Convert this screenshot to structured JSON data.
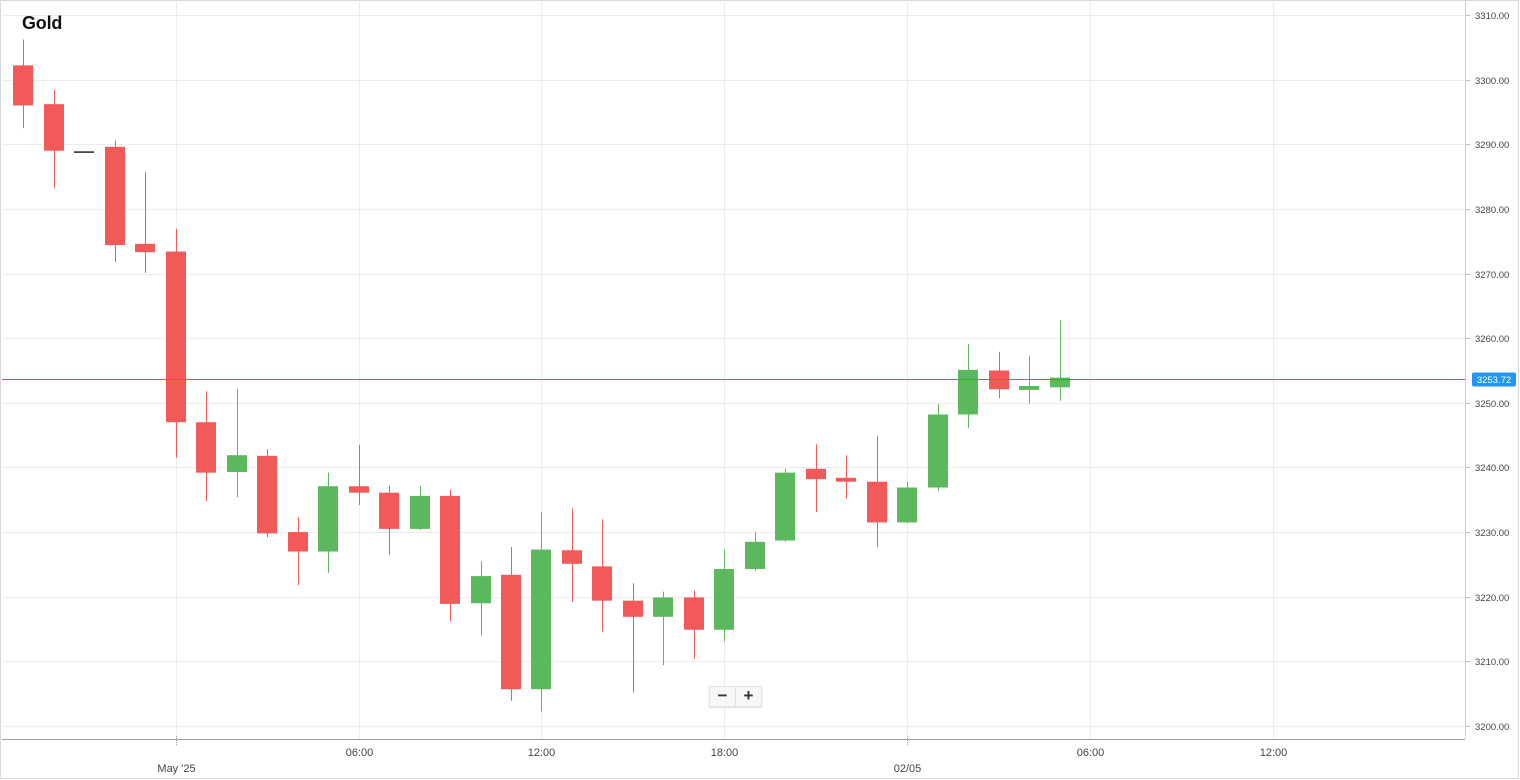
{
  "title": "Gold",
  "zoom": {
    "minus_label": "−",
    "plus_label": "+"
  },
  "colors": {
    "up": "#5cb85c",
    "down": "#f25a5a",
    "price_line": "#1aa0a0",
    "price_badge": "#2196f3",
    "grid": "#ececec",
    "text": "#444444"
  },
  "chart_data": {
    "type": "candlestick",
    "title": "Gold",
    "y_axis": {
      "position": "right",
      "ylim": [
        3198,
        3312
      ],
      "ticks": [
        "3200.00",
        "3210.00",
        "3220.00",
        "3230.00",
        "3240.00",
        "3250.00",
        "3260.00",
        "3270.00",
        "3280.00",
        "3290.00",
        "3300.00",
        "3310.00"
      ]
    },
    "x_axis": {
      "interval_hours": 1,
      "range_hours": [
        -5.7,
        42.3
      ],
      "ticks": [
        {
          "hour": 0,
          "label": "May '25",
          "major": true
        },
        {
          "hour": 6,
          "label": "06:00",
          "major": false
        },
        {
          "hour": 12,
          "label": "12:00",
          "major": false
        },
        {
          "hour": 18,
          "label": "18:00",
          "major": false
        },
        {
          "hour": 24,
          "label": "02/05",
          "major": true
        },
        {
          "hour": 30,
          "label": "06:00",
          "major": false
        },
        {
          "hour": 36,
          "label": "12:00",
          "major": false
        }
      ]
    },
    "last_price": {
      "value": 3253.72,
      "label": "3253.72"
    },
    "candles": [
      {
        "hour": -5,
        "open": 3302.2,
        "high": 3306.2,
        "low": 3292.5,
        "close": 3296.0
      },
      {
        "hour": -4,
        "open": 3296.2,
        "high": 3298.4,
        "low": 3283.2,
        "close": 3289.0
      },
      {
        "hour": -3,
        "open": 3288.9,
        "high": 3288.9,
        "low": 3288.9,
        "close": 3288.9
      },
      {
        "hour": -2,
        "open": 3289.6,
        "high": 3290.6,
        "low": 3271.8,
        "close": 3274.4
      },
      {
        "hour": -1,
        "open": 3274.6,
        "high": 3285.7,
        "low": 3270.1,
        "close": 3273.3
      },
      {
        "hour": 0,
        "open": 3273.4,
        "high": 3276.9,
        "low": 3241.5,
        "close": 3247.0
      },
      {
        "hour": 1,
        "open": 3247.0,
        "high": 3251.8,
        "low": 3234.8,
        "close": 3239.2
      },
      {
        "hour": 2,
        "open": 3239.3,
        "high": 3252.1,
        "low": 3235.4,
        "close": 3241.9
      },
      {
        "hour": 3,
        "open": 3241.8,
        "high": 3242.8,
        "low": 3229.2,
        "close": 3229.8
      },
      {
        "hour": 4,
        "open": 3230.0,
        "high": 3232.3,
        "low": 3221.8,
        "close": 3227.0
      },
      {
        "hour": 5,
        "open": 3227.0,
        "high": 3239.2,
        "low": 3223.7,
        "close": 3237.1
      },
      {
        "hour": 6,
        "open": 3237.1,
        "high": 3243.5,
        "low": 3234.2,
        "close": 3236.1
      },
      {
        "hour": 7,
        "open": 3236.1,
        "high": 3237.2,
        "low": 3226.5,
        "close": 3230.5
      },
      {
        "hour": 8,
        "open": 3230.5,
        "high": 3237.1,
        "low": 3230.3,
        "close": 3235.6
      },
      {
        "hour": 9,
        "open": 3235.6,
        "high": 3236.6,
        "low": 3216.2,
        "close": 3218.9
      },
      {
        "hour": 10,
        "open": 3219.0,
        "high": 3225.5,
        "low": 3214.0,
        "close": 3223.2
      },
      {
        "hour": 11,
        "open": 3223.4,
        "high": 3227.7,
        "low": 3203.9,
        "close": 3205.7
      },
      {
        "hour": 12,
        "open": 3205.7,
        "high": 3233.1,
        "low": 3202.3,
        "close": 3227.3
      },
      {
        "hour": 13,
        "open": 3227.2,
        "high": 3233.7,
        "low": 3219.2,
        "close": 3225.1
      },
      {
        "hour": 14,
        "open": 3224.7,
        "high": 3232.0,
        "low": 3214.6,
        "close": 3219.4
      },
      {
        "hour": 15,
        "open": 3219.4,
        "high": 3222.1,
        "low": 3205.2,
        "close": 3216.9
      },
      {
        "hour": 16,
        "open": 3216.9,
        "high": 3220.8,
        "low": 3209.4,
        "close": 3219.9
      },
      {
        "hour": 17,
        "open": 3219.9,
        "high": 3221.0,
        "low": 3210.4,
        "close": 3214.9
      },
      {
        "hour": 18,
        "open": 3214.9,
        "high": 3227.3,
        "low": 3213.1,
        "close": 3224.3
      },
      {
        "hour": 19,
        "open": 3224.3,
        "high": 3230.0,
        "low": 3224.0,
        "close": 3228.5
      },
      {
        "hour": 20,
        "open": 3228.7,
        "high": 3239.8,
        "low": 3228.5,
        "close": 3239.2
      },
      {
        "hour": 21,
        "open": 3239.8,
        "high": 3243.6,
        "low": 3233.1,
        "close": 3238.2
      },
      {
        "hour": 22,
        "open": 3238.4,
        "high": 3241.9,
        "low": 3235.2,
        "close": 3237.8
      },
      {
        "hour": 23,
        "open": 3237.8,
        "high": 3244.9,
        "low": 3227.7,
        "close": 3231.5
      },
      {
        "hour": 24,
        "open": 3231.5,
        "high": 3237.8,
        "low": 3231.4,
        "close": 3236.9
      },
      {
        "hour": 25,
        "open": 3236.9,
        "high": 3249.8,
        "low": 3236.4,
        "close": 3248.2
      },
      {
        "hour": 26,
        "open": 3248.2,
        "high": 3259.1,
        "low": 3246.1,
        "close": 3255.1
      },
      {
        "hour": 27,
        "open": 3255.0,
        "high": 3257.9,
        "low": 3250.7,
        "close": 3252.1
      },
      {
        "hour": 28,
        "open": 3252.0,
        "high": 3257.3,
        "low": 3249.9,
        "close": 3252.6
      },
      {
        "hour": 29,
        "open": 3252.4,
        "high": 3262.8,
        "low": 3250.3,
        "close": 3253.9
      }
    ]
  }
}
